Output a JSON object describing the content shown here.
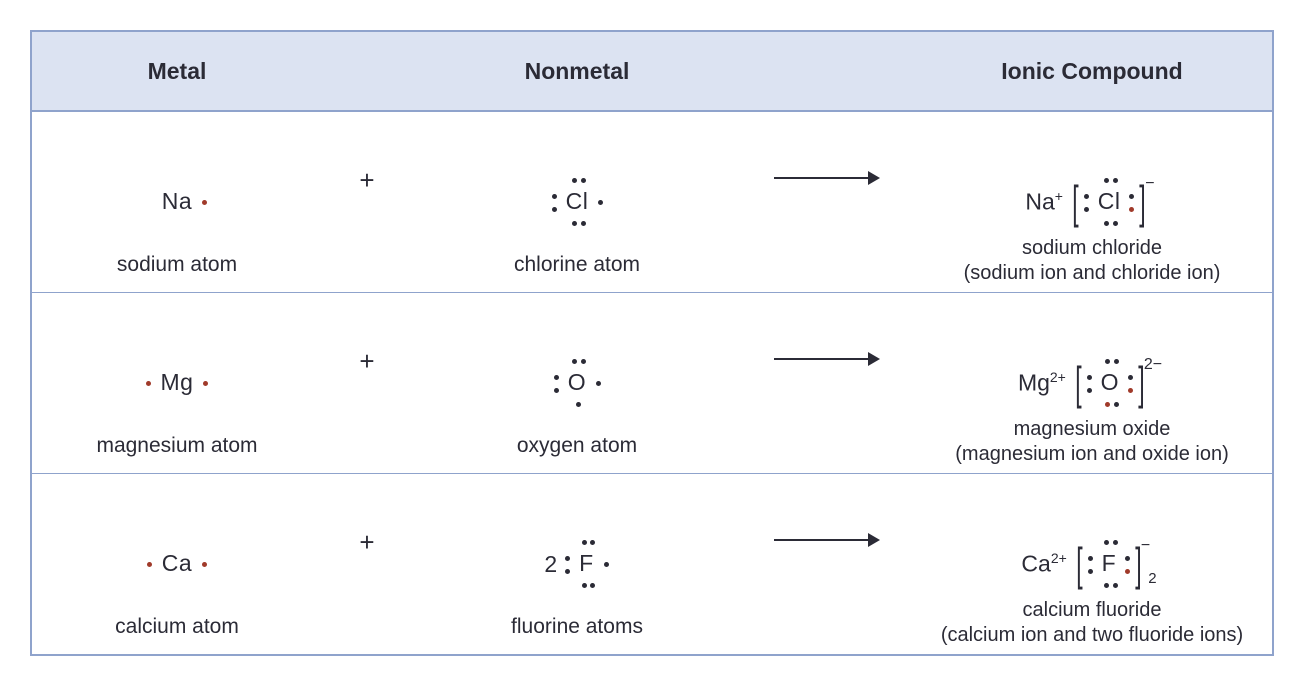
{
  "colors": {
    "border": "#8fa3cc",
    "header_bg": "#dce3f2",
    "text": "#2b2b36",
    "dot_black": "#2b2b36",
    "dot_red": "#a03a2a"
  },
  "headers": {
    "metal": "Metal",
    "nonmetal": "Nonmetal",
    "compound": "Ionic Compound"
  },
  "rows": [
    {
      "metal": {
        "symbol": "Na",
        "dots": [
          {
            "pos": "r-mid",
            "color": "red"
          }
        ],
        "label": "sodium atom"
      },
      "plus": "+",
      "nonmetal": {
        "coef": "",
        "symbol": "Cl",
        "dots": [
          {
            "pos": "t1"
          },
          {
            "pos": "t2"
          },
          {
            "pos": "b1"
          },
          {
            "pos": "b2"
          },
          {
            "pos": "l1"
          },
          {
            "pos": "l2"
          },
          {
            "pos": "r-mid"
          }
        ],
        "label": "chlorine atom"
      },
      "compound": {
        "cation": "Na",
        "cation_charge": "+",
        "anion_symbol": "Cl",
        "anion_dots": [
          {
            "pos": "t1"
          },
          {
            "pos": "t2"
          },
          {
            "pos": "b1"
          },
          {
            "pos": "b2"
          },
          {
            "pos": "l1"
          },
          {
            "pos": "l2"
          },
          {
            "pos": "r1"
          },
          {
            "pos": "r2",
            "color": "red"
          }
        ],
        "bracket_charge": "−",
        "subscript": "",
        "name_line1": "sodium chloride",
        "name_line2": "(sodium ion and chloride ion)"
      }
    },
    {
      "metal": {
        "symbol": "Mg",
        "dots": [
          {
            "pos": "l-mid",
            "color": "red"
          },
          {
            "pos": "r-mid",
            "color": "red"
          }
        ],
        "label": "magnesium atom"
      },
      "plus": "+",
      "nonmetal": {
        "coef": "",
        "symbol": "O",
        "dots": [
          {
            "pos": "t1"
          },
          {
            "pos": "t2"
          },
          {
            "pos": "l1"
          },
          {
            "pos": "l2"
          },
          {
            "pos": "b-mid"
          },
          {
            "pos": "r-mid"
          }
        ],
        "label": "oxygen atom"
      },
      "compound": {
        "cation": "Mg",
        "cation_charge": "2+",
        "anion_symbol": "O",
        "anion_dots": [
          {
            "pos": "t1"
          },
          {
            "pos": "t2"
          },
          {
            "pos": "l1"
          },
          {
            "pos": "l2"
          },
          {
            "pos": "r1"
          },
          {
            "pos": "r2",
            "color": "red"
          },
          {
            "pos": "b1",
            "color": "red"
          },
          {
            "pos": "b2"
          }
        ],
        "bracket_charge": "2−",
        "subscript": "",
        "name_line1": "magnesium oxide",
        "name_line2": "(magnesium ion and oxide ion)"
      }
    },
    {
      "metal": {
        "symbol": "Ca",
        "dots": [
          {
            "pos": "l-mid",
            "color": "red"
          },
          {
            "pos": "r-mid",
            "color": "red"
          }
        ],
        "label": "calcium atom"
      },
      "plus": "+",
      "nonmetal": {
        "coef": "2",
        "symbol": "F",
        "dots": [
          {
            "pos": "t1"
          },
          {
            "pos": "t2"
          },
          {
            "pos": "b1"
          },
          {
            "pos": "b2"
          },
          {
            "pos": "l1"
          },
          {
            "pos": "l2"
          },
          {
            "pos": "r-mid"
          }
        ],
        "label": "fluorine atoms"
      },
      "compound": {
        "cation": "Ca",
        "cation_charge": "2+",
        "anion_symbol": "F",
        "anion_dots": [
          {
            "pos": "t1"
          },
          {
            "pos": "t2"
          },
          {
            "pos": "b1"
          },
          {
            "pos": "b2"
          },
          {
            "pos": "l1"
          },
          {
            "pos": "l2"
          },
          {
            "pos": "r1"
          },
          {
            "pos": "r2",
            "color": "red"
          }
        ],
        "bracket_charge": "−",
        "subscript": "2",
        "name_line1": "calcium fluoride",
        "name_line2": "(calcium ion and two fluoride ions)"
      }
    }
  ],
  "arrow": {
    "width": 110,
    "height": 18,
    "stroke": "#2b2b36",
    "stroke_width": 2
  }
}
